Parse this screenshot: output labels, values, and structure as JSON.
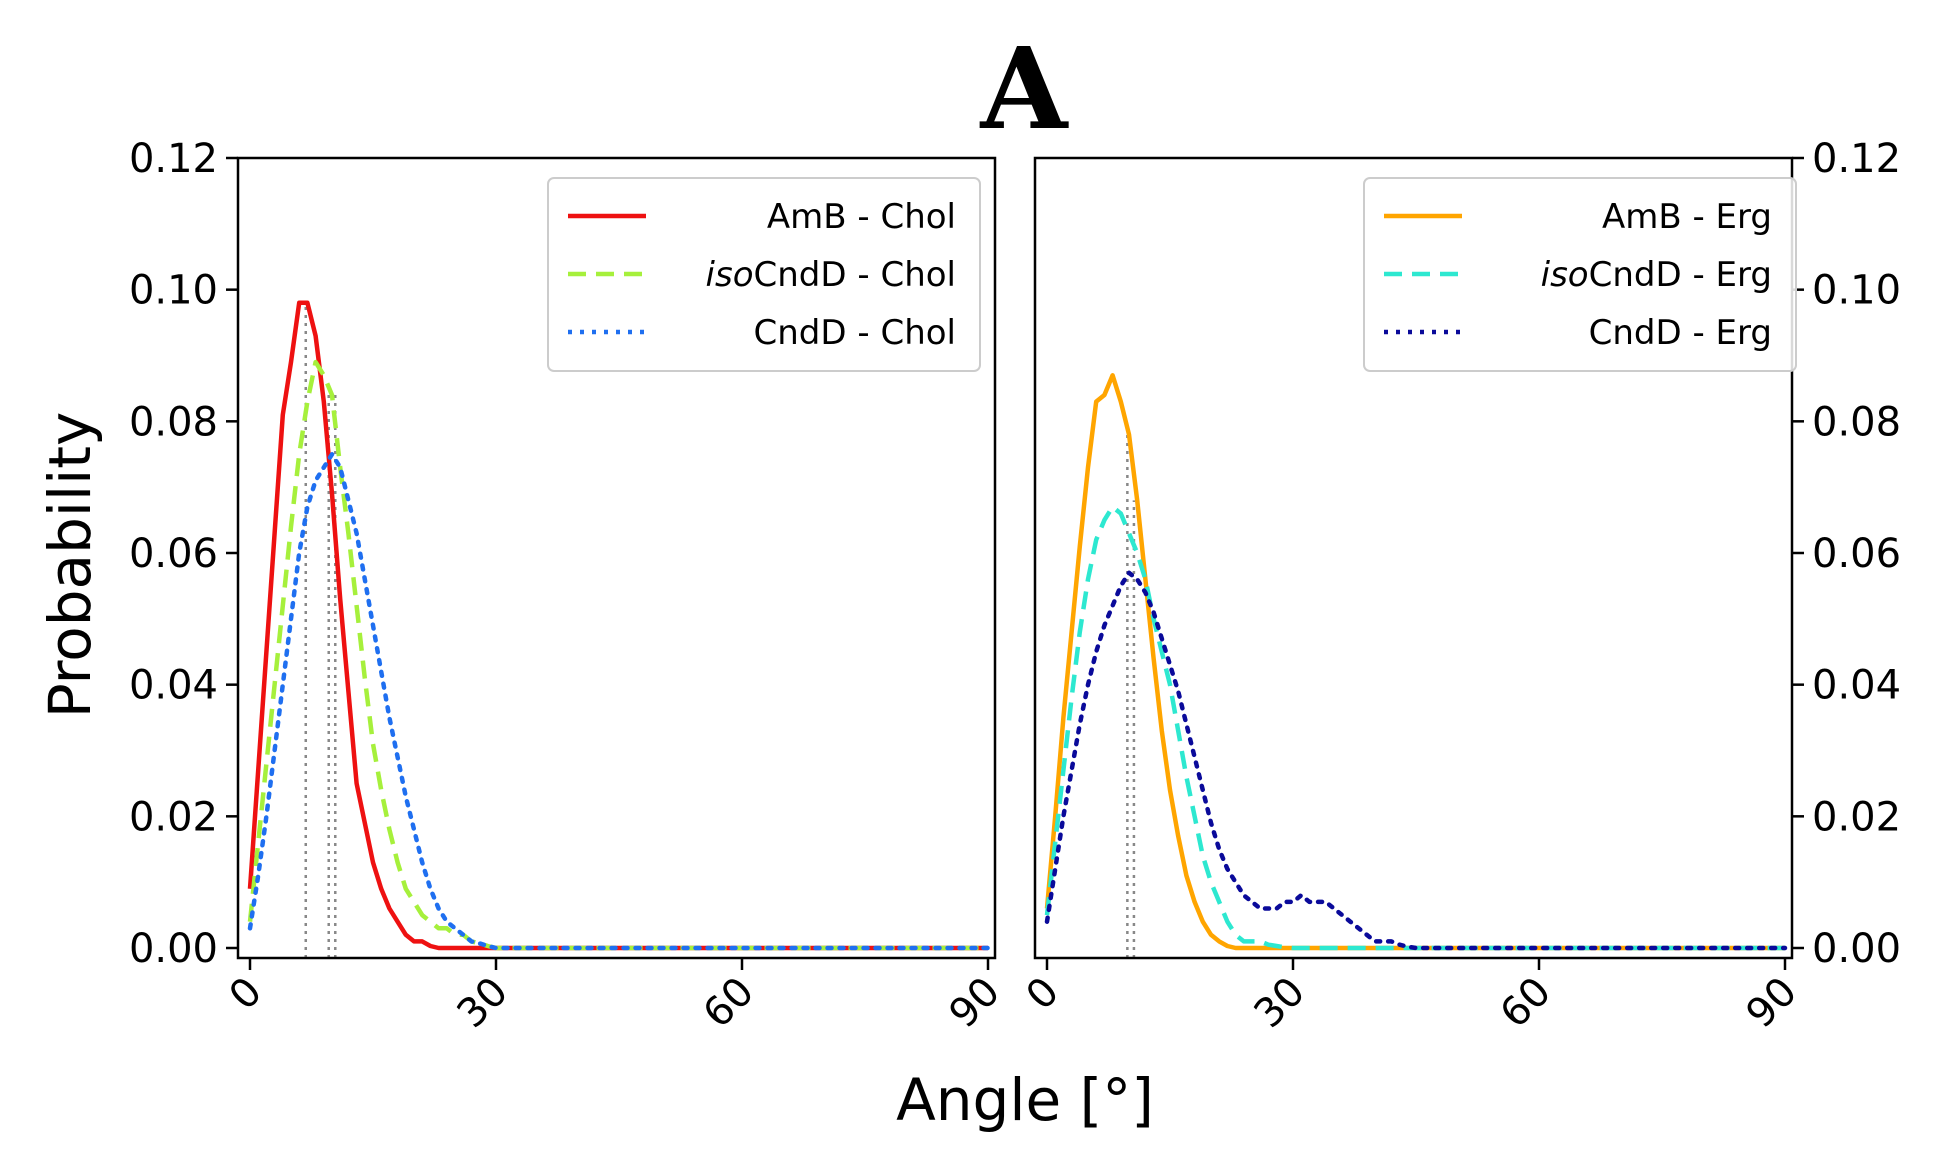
{
  "figure": {
    "panel_label": "A",
    "xlabel": "Angle [°]",
    "ylabel": "Probability"
  },
  "chart_data": [
    {
      "type": "line",
      "panel": "left",
      "xlim": [
        0,
        90
      ],
      "ylim": [
        0,
        0.12
      ],
      "xticks": [
        "0",
        "30",
        "60",
        "90"
      ],
      "yticks": [
        "0.00",
        "0.02",
        "0.04",
        "0.06",
        "0.08",
        "0.10",
        "0.12"
      ],
      "ytick_side": "left",
      "legend_position": "top-right",
      "series": [
        {
          "name": "AmB - Chol",
          "legend_prefix": "",
          "legend_main": "AmB - Chol",
          "color": "#ee1111",
          "style": "solid",
          "x": [
            0,
            1,
            2,
            3,
            4,
            5,
            6,
            7,
            8,
            9,
            10,
            11,
            12,
            13,
            14,
            15,
            16,
            17,
            18,
            19,
            20,
            21,
            22,
            23,
            24,
            25,
            30,
            40,
            60,
            90
          ],
          "y": [
            0.009,
            0.027,
            0.045,
            0.063,
            0.081,
            0.089,
            0.098,
            0.098,
            0.093,
            0.083,
            0.069,
            0.053,
            0.039,
            0.025,
            0.019,
            0.013,
            0.009,
            0.006,
            0.004,
            0.002,
            0.001,
            0.001,
            0.0003,
            0,
            0,
            0,
            0,
            0,
            0,
            0
          ]
        },
        {
          "name": "isoCndD - Chol",
          "legend_prefix": "iso",
          "legend_main": "CndD - Chol",
          "color": "#a6f03c",
          "style": "dashed",
          "x": [
            0,
            1,
            2,
            3,
            4,
            5,
            6,
            7,
            8,
            9,
            10,
            11,
            12,
            13,
            14,
            15,
            16,
            17,
            18,
            19,
            20,
            21,
            22,
            23,
            24,
            25,
            26,
            27,
            28,
            29,
            30,
            40,
            60,
            90
          ],
          "y": [
            0.004,
            0.016,
            0.028,
            0.04,
            0.052,
            0.064,
            0.075,
            0.083,
            0.089,
            0.087,
            0.084,
            0.073,
            0.063,
            0.052,
            0.041,
            0.031,
            0.024,
            0.018,
            0.013,
            0.009,
            0.007,
            0.005,
            0.004,
            0.003,
            0.003,
            0.002,
            0.002,
            0.001,
            0.0007,
            0.0003,
            0,
            0,
            0,
            0
          ]
        },
        {
          "name": "CndD - Chol",
          "legend_prefix": "",
          "legend_main": "CndD - Chol",
          "color": "#1f6ff0",
          "style": "dotted",
          "x": [
            0,
            1,
            2,
            3,
            4,
            5,
            6,
            7,
            8,
            9,
            10,
            11,
            12,
            13,
            14,
            15,
            16,
            17,
            18,
            19,
            20,
            21,
            22,
            23,
            24,
            25,
            26,
            27,
            28,
            29,
            30,
            40,
            60,
            90
          ],
          "y": [
            0.003,
            0.011,
            0.02,
            0.03,
            0.04,
            0.05,
            0.06,
            0.067,
            0.071,
            0.073,
            0.075,
            0.073,
            0.068,
            0.063,
            0.056,
            0.049,
            0.042,
            0.035,
            0.029,
            0.023,
            0.018,
            0.013,
            0.009,
            0.006,
            0.004,
            0.003,
            0.002,
            0.001,
            0.0007,
            0.0003,
            0,
            0,
            0,
            0
          ]
        }
      ],
      "reference_lines_x": [
        6.8,
        9.6,
        10.4
      ]
    },
    {
      "type": "line",
      "panel": "right",
      "xlim": [
        0,
        90
      ],
      "ylim": [
        0,
        0.12
      ],
      "xticks": [
        "0",
        "30",
        "60",
        "90"
      ],
      "yticks": [
        "0.00",
        "0.02",
        "0.04",
        "0.06",
        "0.08",
        "0.10",
        "0.12"
      ],
      "ytick_side": "right",
      "legend_position": "top-right",
      "series": [
        {
          "name": "AmB - Erg",
          "legend_prefix": "",
          "legend_main": "AmB  - Erg",
          "color": "#ffa500",
          "style": "solid",
          "x": [
            0,
            1,
            2,
            3,
            4,
            5,
            6,
            7,
            8,
            9,
            10,
            11,
            12,
            13,
            14,
            15,
            16,
            17,
            18,
            19,
            20,
            21,
            22,
            23,
            24,
            30,
            40,
            60,
            90
          ],
          "y": [
            0.006,
            0.02,
            0.035,
            0.048,
            0.061,
            0.073,
            0.083,
            0.084,
            0.087,
            0.083,
            0.078,
            0.068,
            0.056,
            0.044,
            0.033,
            0.024,
            0.017,
            0.011,
            0.007,
            0.004,
            0.002,
            0.001,
            0.0003,
            0,
            0,
            0,
            0,
            0,
            0
          ]
        },
        {
          "name": "isoCndD - Erg",
          "legend_prefix": "iso",
          "legend_main": "CndD - Erg",
          "color": "#2de8d0",
          "style": "dashed",
          "x": [
            0,
            1,
            2,
            3,
            4,
            5,
            6,
            7,
            8,
            9,
            10,
            11,
            12,
            13,
            14,
            15,
            16,
            17,
            18,
            19,
            20,
            21,
            22,
            23,
            24,
            25,
            26,
            27,
            28,
            29,
            30,
            31,
            40,
            60,
            90
          ],
          "y": [
            0.005,
            0.016,
            0.027,
            0.038,
            0.048,
            0.056,
            0.062,
            0.065,
            0.067,
            0.066,
            0.063,
            0.06,
            0.056,
            0.05,
            0.045,
            0.04,
            0.033,
            0.026,
            0.02,
            0.014,
            0.01,
            0.007,
            0.004,
            0.002,
            0.001,
            0.001,
            0.001,
            0.0005,
            0.0003,
            0.0001,
            0,
            0,
            0,
            0,
            0
          ]
        },
        {
          "name": "CndD - Erg",
          "legend_prefix": "",
          "legend_main": "CndD  - Erg",
          "color": "#0a0a9a",
          "style": "dotted",
          "x": [
            0,
            1,
            2,
            3,
            4,
            5,
            6,
            7,
            8,
            9,
            10,
            11,
            12,
            13,
            14,
            15,
            16,
            17,
            18,
            19,
            20,
            21,
            22,
            23,
            24,
            25,
            26,
            27,
            28,
            29,
            30,
            31,
            32,
            33,
            34,
            35,
            36,
            37,
            38,
            39,
            40,
            41,
            42,
            43,
            44,
            45,
            60,
            90
          ],
          "y": [
            0.004,
            0.012,
            0.02,
            0.027,
            0.034,
            0.04,
            0.045,
            0.049,
            0.052,
            0.055,
            0.057,
            0.056,
            0.054,
            0.051,
            0.047,
            0.043,
            0.039,
            0.034,
            0.029,
            0.024,
            0.019,
            0.015,
            0.012,
            0.01,
            0.008,
            0.007,
            0.006,
            0.006,
            0.006,
            0.007,
            0.007,
            0.008,
            0.007,
            0.007,
            0.007,
            0.006,
            0.005,
            0.004,
            0.003,
            0.002,
            0.001,
            0.001,
            0.001,
            0.0005,
            0.0002,
            0,
            0,
            0
          ]
        }
      ],
      "reference_lines_x": [
        9.8,
        10.6
      ]
    }
  ]
}
